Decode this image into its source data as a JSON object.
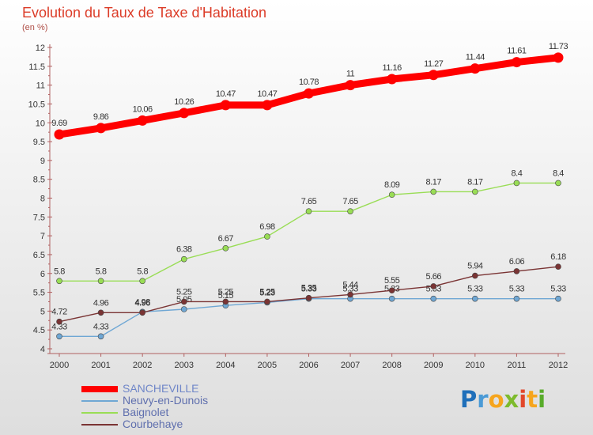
{
  "chart_data": {
    "type": "line",
    "title": "Evolution du Taux de Taxe d'Habitation",
    "unit_label": "(en %)",
    "categories": [
      "2000",
      "2001",
      "2002",
      "2003",
      "2004",
      "2005",
      "2006",
      "2007",
      "2008",
      "2009",
      "2010",
      "2011",
      "2012"
    ],
    "y_ticks": [
      "4",
      "4.5",
      "5",
      "5.5",
      "6",
      "6.5",
      "7",
      "7.5",
      "8",
      "8.5",
      "9",
      "9.5",
      "10",
      "10.5",
      "11",
      "11.5",
      "12"
    ],
    "ylim": [
      4,
      12
    ],
    "grid": false,
    "legend_position": "bottom-left",
    "series": [
      {
        "name": "SANCHEVILLE",
        "color": "#ff0000",
        "values": [
          9.69,
          9.86,
          10.06,
          10.26,
          10.47,
          10.47,
          10.78,
          11,
          11.16,
          11.27,
          11.44,
          11.61,
          11.73
        ],
        "labels": [
          "9.69",
          "9.86",
          "10.06",
          "10.26",
          "10.47",
          "10.47",
          "10.78",
          "11",
          "11.16",
          "11.27",
          "11.44",
          "11.61",
          "11.73"
        ]
      },
      {
        "name": "Neuvy-en-Dunois",
        "color": "#6fa7d4",
        "values": [
          4.33,
          4.33,
          4.98,
          5.05,
          5.15,
          5.23,
          5.33,
          5.33,
          5.33,
          5.33,
          5.33,
          5.33,
          5.33
        ],
        "labels": [
          "4.33",
          "4.33",
          "4.98",
          "5.05",
          "5.15",
          "5.23",
          "5.33",
          "5.33",
          "5.33",
          "5.33",
          "5.33",
          "5.33",
          "5.33"
        ]
      },
      {
        "name": "Baignolet",
        "color": "#99dd55",
        "values": [
          5.8,
          5.8,
          5.8,
          6.38,
          6.67,
          6.98,
          7.65,
          7.65,
          8.09,
          8.17,
          8.17,
          8.4,
          8.4
        ],
        "labels": [
          "5.8",
          "5.8",
          "5.8",
          "6.38",
          "6.67",
          "6.98",
          "7.65",
          "7.65",
          "8.09",
          "8.17",
          "8.17",
          "8.4",
          "8.4"
        ]
      },
      {
        "name": "Courbehaye",
        "color": "#7a3434",
        "values": [
          4.72,
          4.96,
          4.96,
          5.25,
          5.25,
          5.25,
          5.35,
          5.44,
          5.55,
          5.66,
          5.94,
          6.06,
          6.18
        ],
        "labels": [
          "4.72",
          "4.96",
          "4.96",
          "5.25",
          "5.25",
          "5.25",
          "5.35",
          "5.44",
          "5.55",
          "5.66",
          "5.94",
          "6.06",
          "6.18"
        ]
      }
    ]
  },
  "legend": [
    {
      "label": "SANCHEVILLE",
      "color": "#ff0000",
      "text_color": "#6f86c8"
    },
    {
      "label": "Neuvy-en-Dunois",
      "color": "#6fa7d4",
      "text_color": "#5f6fae"
    },
    {
      "label": "Baignolet",
      "color": "#99dd55",
      "text_color": "#5f6fae"
    },
    {
      "label": "Courbehaye",
      "color": "#7a3434",
      "text_color": "#5f6fae"
    }
  ],
  "brand": {
    "letters": [
      "P",
      "r",
      "o",
      "x",
      "i",
      "t",
      "i"
    ],
    "colors": [
      "#1f6fba",
      "#4a9ad6",
      "#f6a51d",
      "#7dbb2d",
      "#e2472a",
      "#f6a51d",
      "#58ab2a"
    ]
  }
}
